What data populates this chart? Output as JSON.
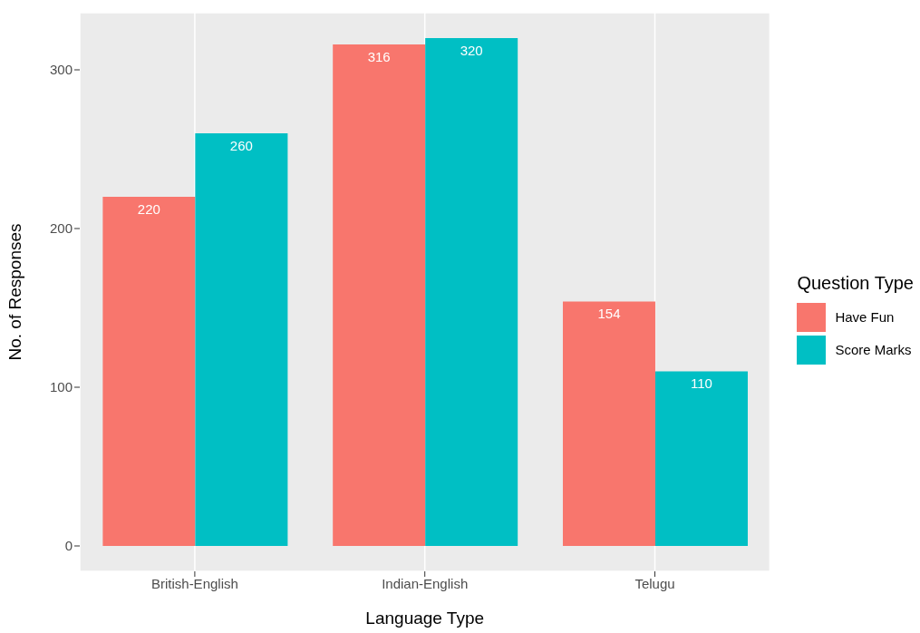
{
  "chart_data": {
    "type": "bar",
    "xlabel": "Language Type",
    "ylabel": "No. of Responses",
    "legend_title": "Question Type",
    "categories": [
      "British-English",
      "Indian-English",
      "Telugu"
    ],
    "series": [
      {
        "name": "Have Fun",
        "color": "#f8766d",
        "values": [
          220,
          316,
          154
        ]
      },
      {
        "name": "Score Marks",
        "color": "#00bfc4",
        "values": [
          260,
          320,
          110
        ]
      }
    ],
    "ylim": [
      -16,
      336
    ],
    "yticks": [
      0,
      100,
      200,
      300
    ],
    "grid": true,
    "legend": "right",
    "data_labels": true
  }
}
